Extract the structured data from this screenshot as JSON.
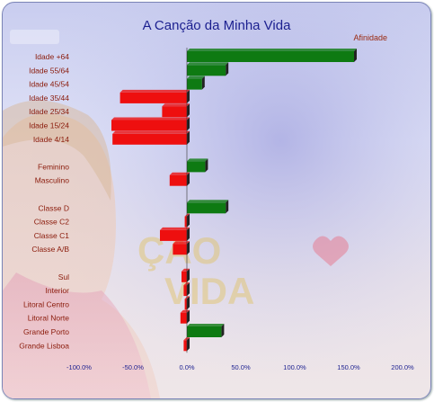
{
  "chart_data": {
    "type": "bar",
    "orientation": "horizontal",
    "title": "A Canção da Minha Vida",
    "series_label": "Afinidade",
    "categories": [
      "Idade +64",
      "Idade 55/64",
      "Idade 45/54",
      "Idade 35/44",
      "Idade 25/34",
      "Idade 15/24",
      "Idade 4/14",
      "",
      "Feminino",
      "Masculino",
      "",
      "Classe D",
      "Classe C2",
      "Classe C1",
      "Classe A/B",
      "",
      "Sul",
      "Interior",
      "Litoral Centro",
      "Litoral Norte",
      "Grande Porto",
      "Grande Lisboa"
    ],
    "values": [
      155,
      36,
      14,
      -62,
      -23,
      -70,
      -69,
      null,
      17,
      -16,
      null,
      36,
      -2,
      -25,
      -13,
      null,
      -5,
      -3,
      -2,
      -6,
      32,
      -3
    ],
    "xlim": [
      -100,
      200
    ],
    "x_ticks": [
      "-100.0%",
      "-50.0%",
      "0.0%",
      "50.0%",
      "100.0%",
      "150.0%",
      "200.0%"
    ],
    "x_tick_values": [
      -100,
      -50,
      0,
      50,
      100,
      150,
      200
    ],
    "positive_color": "#0e7a12",
    "negative_color": "#ee0f0f",
    "grid": false,
    "background_colors": [
      "#c9cdef",
      "#efe6e8"
    ]
  }
}
